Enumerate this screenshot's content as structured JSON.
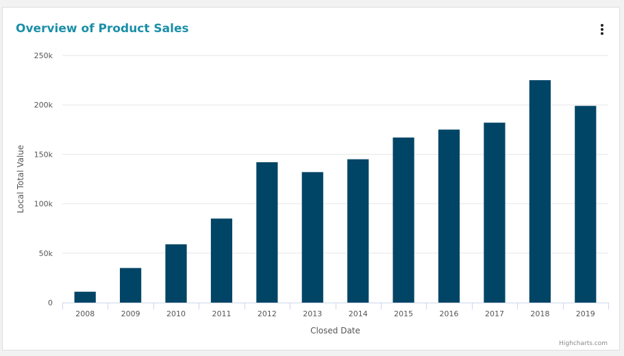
{
  "card": {
    "title": "Overview of Product Sales",
    "menu_icon": "more-vertical-icon",
    "credits": "Highcharts.com"
  },
  "colors": {
    "title": "#1b8fa8",
    "bar": "#004566",
    "grid": "#e6e6e6",
    "axis_text": "#555555"
  },
  "chart_data": {
    "type": "bar",
    "title": "",
    "xlabel": "Closed Date",
    "ylabel": "Local Total Value",
    "categories": [
      "2008",
      "2009",
      "2010",
      "2011",
      "2012",
      "2013",
      "2014",
      "2015",
      "2016",
      "2017",
      "2018",
      "2019"
    ],
    "values": [
      11000,
      35000,
      59000,
      85000,
      142000,
      132000,
      145000,
      167000,
      175000,
      182000,
      225000,
      199000
    ],
    "ylim": [
      0,
      250000
    ],
    "yticks": [
      0,
      50000,
      100000,
      150000,
      200000,
      250000
    ],
    "ytick_labels": [
      "0",
      "50k",
      "100k",
      "150k",
      "200k",
      "250k"
    ],
    "grid": true,
    "legend": "none"
  }
}
